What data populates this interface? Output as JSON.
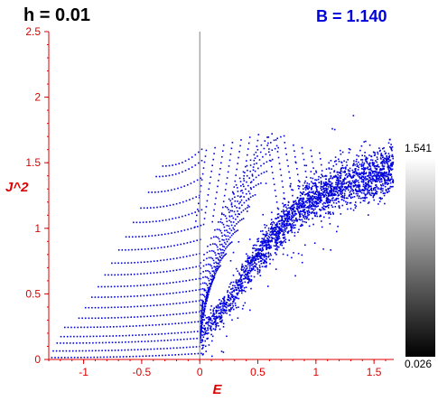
{
  "header": {
    "h_label": "h = 0.01",
    "b_label": "B = 1.140"
  },
  "colors": {
    "points": "#0000dd",
    "axis_text": "#e00000",
    "b_label": "#0000dd",
    "axis_line": "#e00000",
    "zero_line": "#808080"
  },
  "colorbar": {
    "max_label": "1.541",
    "min_label": "0.026"
  },
  "chart_data": {
    "type": "scatter",
    "xlabel": "E",
    "ylabel": "J^2",
    "xlim": [
      -1.3,
      1.67
    ],
    "ylim": [
      0,
      2.5
    ],
    "xticks": [
      -1,
      -0.5,
      0,
      0.5,
      1,
      1.5
    ],
    "xtick_labels": [
      "-1",
      "-0.5",
      "0",
      "0.5",
      "1",
      "1.5"
    ],
    "yticks": [
      0,
      0.5,
      1,
      1.5,
      2,
      2.5
    ],
    "ytick_labels": [
      "0",
      "0.5",
      "1",
      "1.5",
      "2",
      "2.5"
    ],
    "grid": false,
    "vertical_reference_line_x": 0,
    "series": [
      {
        "description_of_structure": "stepped horizontal bands at J^2 = 0.02..1.48 curving upward from E=-1.3 toward E=0, fanning arcs for E in [0,0.8] peaking near J^2=1.72, and a dense noisy band from (0,0.2) rising to (1.65,1.45)",
        "band_levels_J2": [
          0.02,
          0.07,
          0.13,
          0.18,
          0.25,
          0.32,
          0.4,
          0.48,
          0.56,
          0.65,
          0.74,
          0.84,
          0.94,
          1.05,
          1.16,
          1.28,
          1.4,
          1.48
        ],
        "dense_band_centerline": [
          [
            0.0,
            0.18
          ],
          [
            0.25,
            0.45
          ],
          [
            0.5,
            0.8
          ],
          [
            0.75,
            1.08
          ],
          [
            1.0,
            1.25
          ],
          [
            1.25,
            1.35
          ],
          [
            1.5,
            1.42
          ],
          [
            1.65,
            1.46
          ]
        ],
        "arc_peak": [
          0.6,
          1.72
        ]
      }
    ]
  }
}
